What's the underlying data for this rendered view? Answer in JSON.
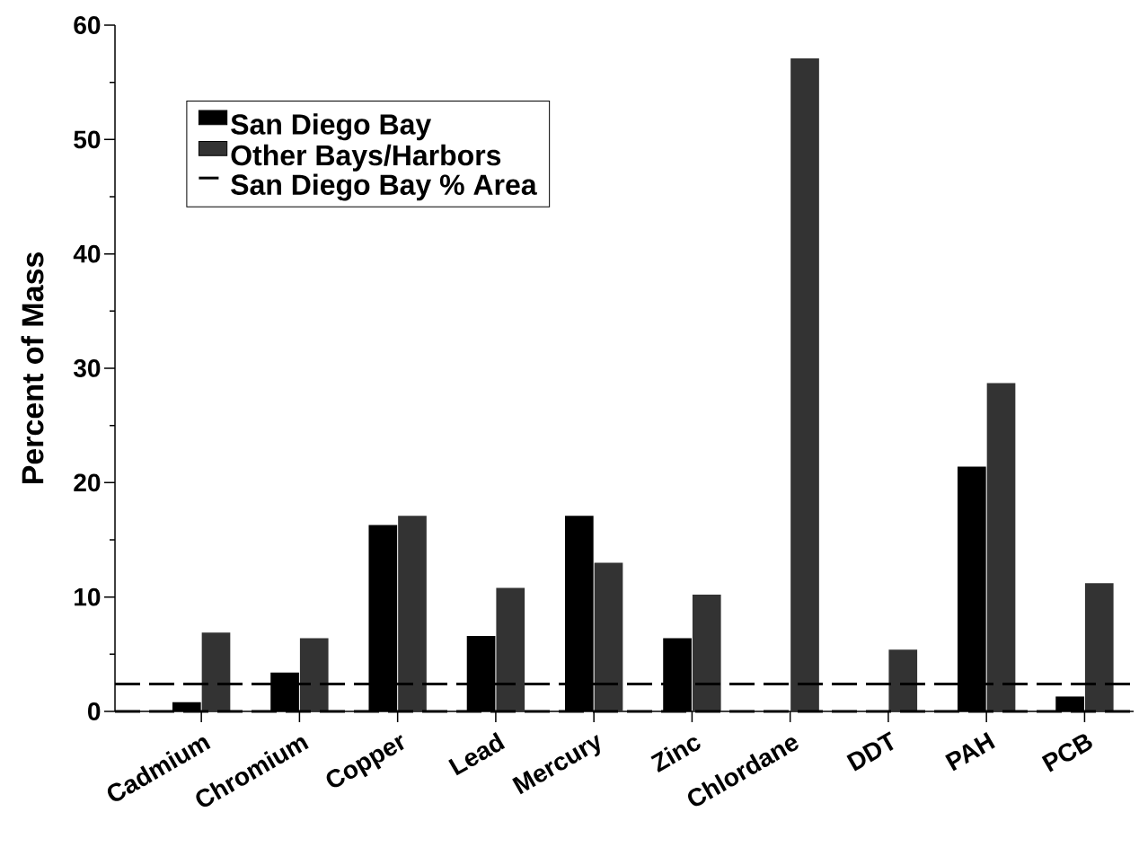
{
  "chart_data": {
    "type": "bar",
    "ylabel": "Percent of Mass",
    "categories": [
      "Cadmium",
      "Chromium",
      "Copper",
      "Lead",
      "Mercury",
      "Zinc",
      "Chlordane",
      "DDT",
      "PAH",
      "PCB"
    ],
    "series": [
      {
        "name": "San Diego Bay",
        "color": "#000000",
        "values": [
          0.8,
          3.4,
          16.3,
          6.6,
          17.1,
          6.4,
          null,
          null,
          21.4,
          1.3
        ]
      },
      {
        "name": "Other Bays/Harbors",
        "color": "#333333",
        "values": [
          6.9,
          6.4,
          17.1,
          10.8,
          13.0,
          10.2,
          57.1,
          5.4,
          28.7,
          11.2
        ]
      }
    ],
    "ylim": [
      0,
      60
    ],
    "yticks": [
      0,
      {
        "value": 5,
        "label": null
      },
      10,
      {
        "value": 15,
        "label": null
      },
      20,
      {
        "value": 25,
        "label": null
      },
      30,
      {
        "value": 35,
        "label": null
      },
      40,
      {
        "value": 45,
        "label": null
      },
      50,
      {
        "value": 55,
        "label": null
      },
      60
    ],
    "ref_lines": [
      {
        "axis": "y",
        "value": 2.4,
        "label": "San Diego Bay % Area",
        "color": "#000000",
        "line_style": "dashed"
      },
      {
        "axis": "y",
        "value": 0,
        "color": "#000000",
        "line_style": "dashed"
      }
    ],
    "legend": "top left",
    "grid": false
  }
}
